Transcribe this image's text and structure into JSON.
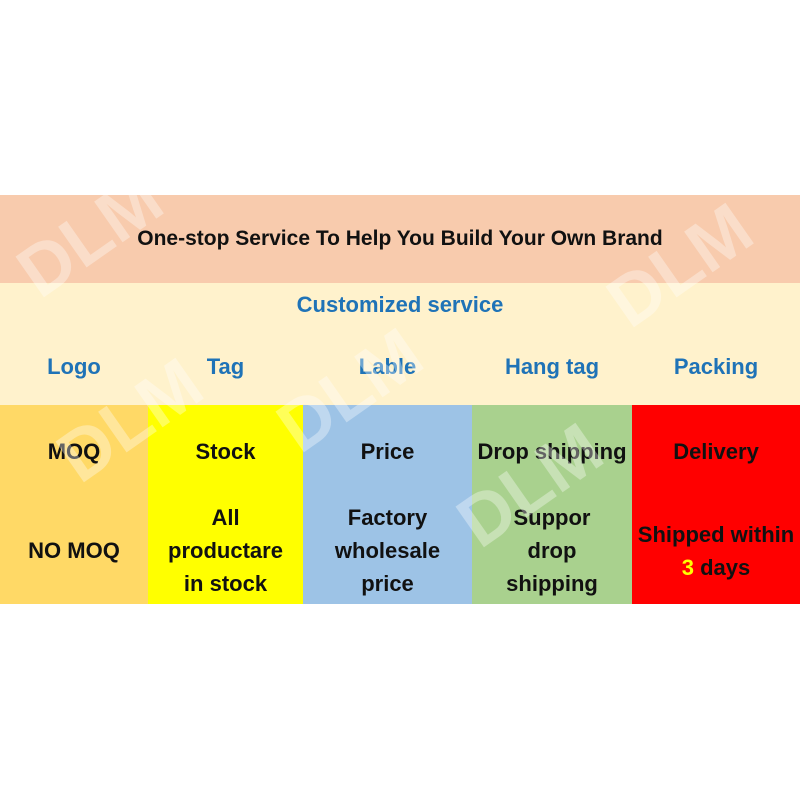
{
  "title": "One-stop Service To Help You Build Your Own Brand",
  "subtitle": "Customized service",
  "watermark": "DLM",
  "columns": [
    {
      "header": "Logo",
      "row1": "MOQ",
      "row2": "NO MOQ",
      "color": "#ffd966"
    },
    {
      "header": "Tag",
      "row1": "Stock",
      "row2": "All productare in stock",
      "color": "#ffff00"
    },
    {
      "header": "Lable",
      "row1": "Price",
      "row2": "Factory wholesale price",
      "color": "#9dc3e6"
    },
    {
      "header": "Hang tag",
      "row1": "Drop shipping",
      "row2": "Suppor drop shipping",
      "color": "#a9d18e"
    },
    {
      "header": "Packing",
      "row1": "Delivery",
      "row2_parts": [
        "Shipped within ",
        "3",
        " days"
      ],
      "color": "#ff0000"
    }
  ],
  "colors": {
    "banner": "#f8cbad",
    "cream": "#fff2cc",
    "accent_text": "#1f73b7",
    "highlight": "#ffff00"
  }
}
